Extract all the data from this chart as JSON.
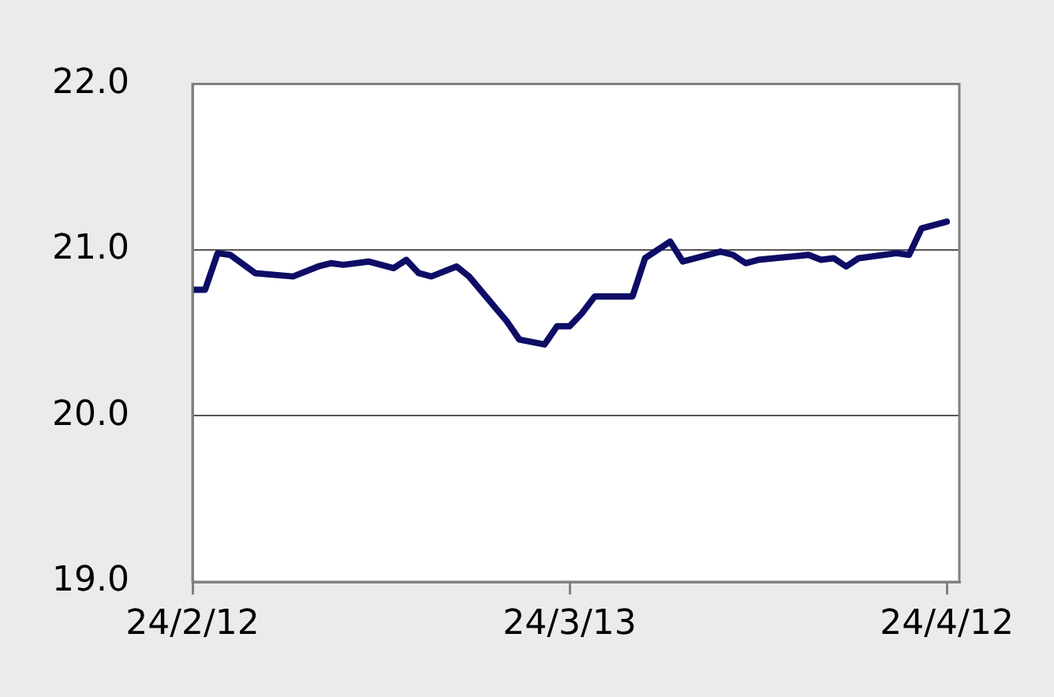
{
  "chart_data": {
    "type": "line",
    "x": [
      "--02-12",
      "--02-13",
      "--02-14",
      "--02-15",
      "--02-17",
      "--02-20",
      "--02-22",
      "--02-23",
      "--02-24",
      "--02-26",
      "--02-28",
      "--02-29",
      "--03-01",
      "--03-02",
      "--03-04",
      "--03-05",
      "--03-06",
      "--03-08",
      "--03-09",
      "--03-11",
      "--03-12",
      "--03-13",
      "--03-14",
      "--03-15",
      "--03-18",
      "--03-19",
      "--03-21",
      "--03-22",
      "--03-25",
      "--03-26",
      "--03-27",
      "--03-28",
      "--04-01",
      "--04-02",
      "--04-03",
      "--04-04",
      "--04-05",
      "--04-08",
      "--04-09",
      "--04-10",
      "--04-12"
    ],
    "series": [
      {
        "color": "#0d0d66",
        "values": [
          20.76,
          20.76,
          20.98,
          20.97,
          20.86,
          20.84,
          20.9,
          20.92,
          20.91,
          20.93,
          20.89,
          20.94,
          20.86,
          20.84,
          20.9,
          20.84,
          20.75,
          20.57,
          20.46,
          20.43,
          20.54,
          20.54,
          20.62,
          20.72,
          20.72,
          20.95,
          21.05,
          20.93,
          20.99,
          20.97,
          20.92,
          20.94,
          20.97,
          20.94,
          20.95,
          20.9,
          20.95,
          20.98,
          20.97,
          21.13,
          21.17
        ]
      }
    ],
    "xlim": [
      "--02-12",
      "--04-13"
    ],
    "xticks": [
      {
        "value": "--02-12",
        "label": "24/2/12"
      },
      {
        "value": "--03-13",
        "label": "24/3/13"
      },
      {
        "value": "--04-12",
        "label": "24/4/12"
      }
    ],
    "ylim": [
      19,
      22
    ],
    "yticks": [
      {
        "value": 19,
        "label": "19.0"
      },
      {
        "value": 20,
        "label": "20.0"
      },
      {
        "value": 21,
        "label": "21.0"
      },
      {
        "value": 22,
        "label": "22.0"
      }
    ],
    "grid": "y",
    "legend": false,
    "marker": "none",
    "line_style": "solid"
  }
}
